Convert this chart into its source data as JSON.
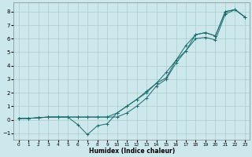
{
  "xlabel": "Humidex (Indice chaleur)",
  "xlim": [
    -0.5,
    23.5
  ],
  "ylim": [
    -1.5,
    8.7
  ],
  "xticks": [
    0,
    1,
    2,
    3,
    4,
    5,
    6,
    7,
    8,
    9,
    10,
    11,
    12,
    13,
    14,
    15,
    16,
    17,
    18,
    19,
    20,
    21,
    22,
    23
  ],
  "yticks": [
    -1,
    0,
    1,
    2,
    3,
    4,
    5,
    6,
    7,
    8
  ],
  "bg_color": "#cde8ed",
  "grid_color": "#aacccc",
  "line_color": "#1a6b6b",
  "line1_x": [
    0,
    1,
    2,
    3,
    4,
    5,
    6,
    7,
    8,
    9,
    10,
    11,
    12,
    13,
    14,
    15,
    16,
    17,
    18,
    19,
    20,
    21,
    22,
    23
  ],
  "line1_y": [
    0.1,
    0.1,
    0.15,
    0.2,
    0.2,
    0.2,
    -0.35,
    -1.1,
    -0.45,
    -0.3,
    0.5,
    1.0,
    1.5,
    2.0,
    2.7,
    3.1,
    4.4,
    5.1,
    6.3,
    6.45,
    6.2,
    8.0,
    8.15,
    7.6
  ],
  "line2_x": [
    0,
    1,
    2,
    3,
    4,
    5,
    6,
    7,
    8,
    9,
    10,
    11,
    12,
    13,
    14,
    15,
    16,
    17,
    18,
    19,
    20,
    21,
    22,
    23
  ],
  "line2_y": [
    0.1,
    0.1,
    0.15,
    0.2,
    0.2,
    0.2,
    0.2,
    0.2,
    0.2,
    0.2,
    0.5,
    1.0,
    1.5,
    2.1,
    2.7,
    3.5,
    4.4,
    5.5,
    6.3,
    6.45,
    6.2,
    8.0,
    8.15,
    7.6
  ],
  "line3_x": [
    0,
    1,
    2,
    3,
    4,
    5,
    6,
    7,
    8,
    9,
    10,
    11,
    12,
    13,
    14,
    15,
    16,
    17,
    18,
    19,
    20,
    21,
    22,
    23
  ],
  "line3_y": [
    0.1,
    0.1,
    0.15,
    0.2,
    0.2,
    0.2,
    0.2,
    0.2,
    0.2,
    0.2,
    0.2,
    0.5,
    1.0,
    1.6,
    2.5,
    3.0,
    4.2,
    5.1,
    6.0,
    6.1,
    5.9,
    7.8,
    8.15,
    7.6
  ]
}
